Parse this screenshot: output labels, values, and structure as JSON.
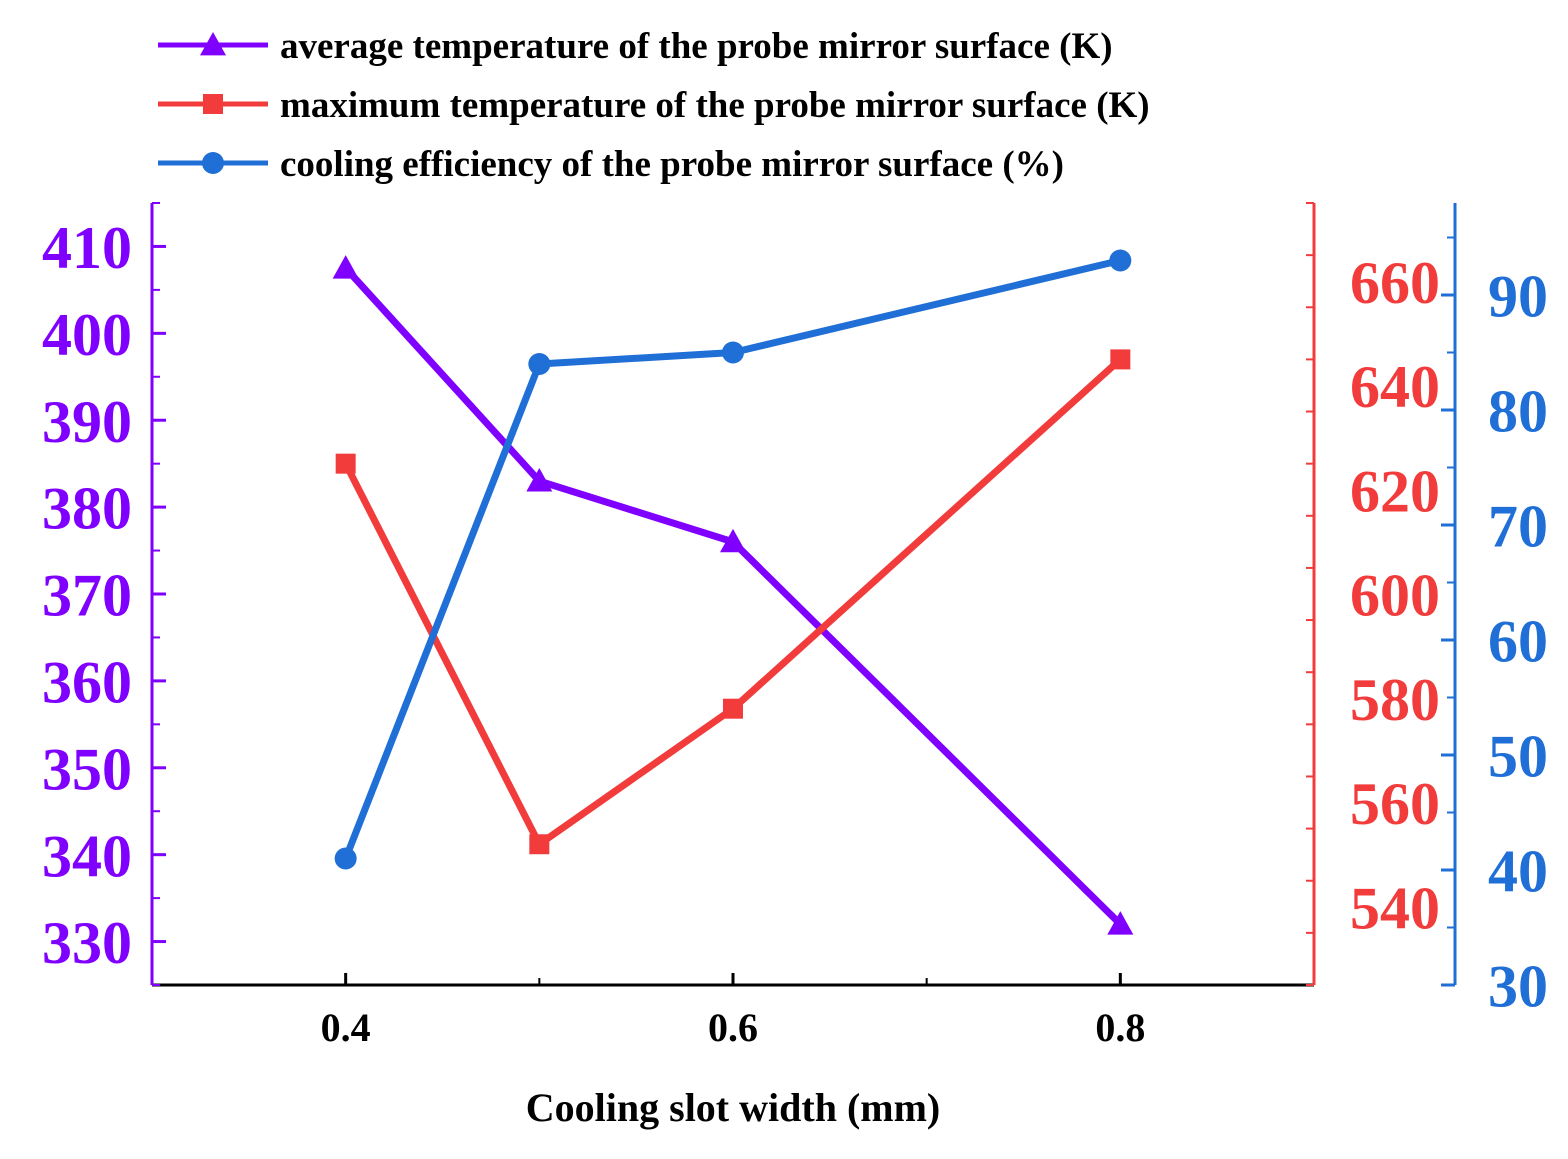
{
  "colors": {
    "left_axis": "#8000ff",
    "right_axis": "#f23c3c",
    "far_right_axis": "#1f6fd6",
    "frame": "#000000"
  },
  "chart_data": {
    "type": "line",
    "title": "",
    "xlabel": "Cooling slot width (mm)",
    "x": [
      0.4,
      0.5,
      0.6,
      0.8
    ],
    "xlim": [
      0.3,
      0.9
    ],
    "x_ticks": [
      "0.4",
      "0.6",
      "0.8"
    ],
    "x_tick_values": [
      0.4,
      0.6,
      0.8
    ],
    "x_minor_values": [
      0.5,
      0.7
    ],
    "legend_position": "top",
    "axes": {
      "left": {
        "range": [
          325,
          415
        ],
        "ticks": [
          "330",
          "340",
          "350",
          "360",
          "370",
          "380",
          "390",
          "400",
          "410"
        ],
        "tick_values": [
          330,
          340,
          350,
          360,
          370,
          380,
          390,
          400,
          410
        ]
      },
      "right": {
        "range": [
          525,
          675
        ],
        "ticks": [
          "540",
          "560",
          "580",
          "600",
          "620",
          "640",
          "660"
        ],
        "tick_values": [
          540,
          560,
          580,
          600,
          620,
          640,
          660
        ]
      },
      "far_right": {
        "range": [
          30,
          98
        ],
        "ticks": [
          "30",
          "40",
          "50",
          "60",
          "70",
          "80",
          "90"
        ],
        "tick_values": [
          30,
          40,
          50,
          60,
          70,
          80,
          90
        ]
      }
    },
    "series": [
      {
        "name": "average temperature of the probe mirror surface (K)",
        "axis": "left",
        "marker": "triangle",
        "color": "#8000ff",
        "values": [
          407.5,
          383,
          376,
          332
        ]
      },
      {
        "name": "maximum temperature of the probe mirror surface (K)",
        "axis": "right",
        "marker": "square",
        "color": "#f23c3c",
        "values": [
          625,
          552,
          578,
          645
        ]
      },
      {
        "name": "cooling efficiency of the probe mirror surface (%)",
        "axis": "far_right",
        "marker": "circle",
        "color": "#1f6fd6",
        "values": [
          41,
          84,
          85,
          93
        ]
      }
    ]
  }
}
